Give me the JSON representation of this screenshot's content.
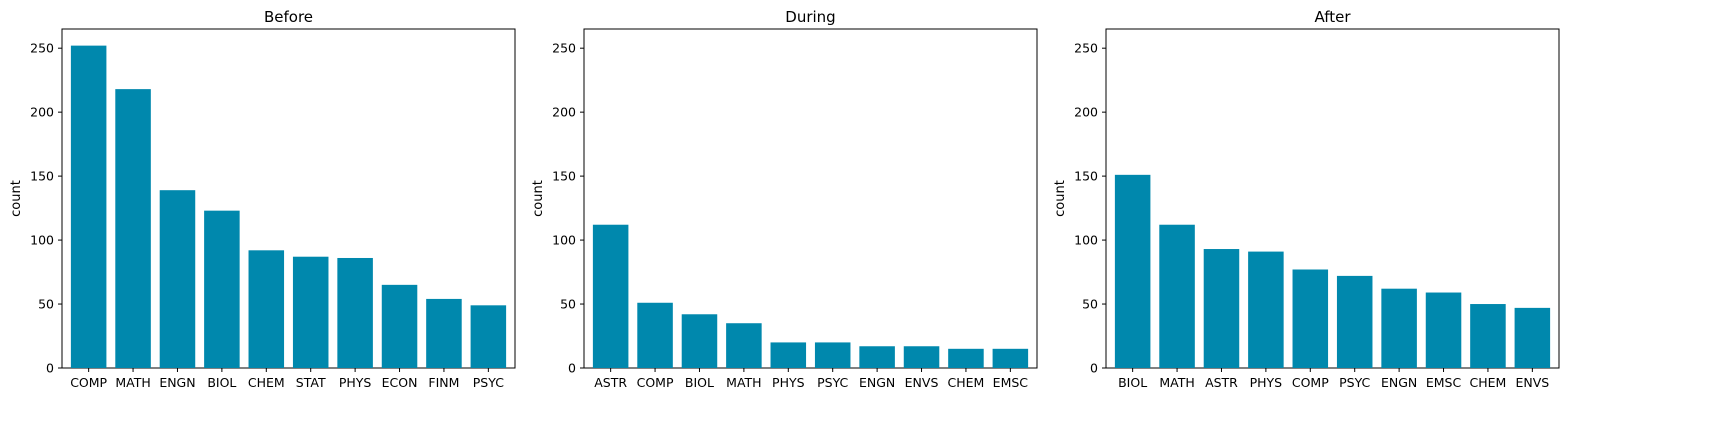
{
  "chart_data": [
    {
      "type": "bar",
      "title": "Before",
      "xlabel": "",
      "ylabel": "count",
      "ylim": [
        0,
        265
      ],
      "yticks": [
        0,
        50,
        100,
        150,
        200,
        250
      ],
      "categories": [
        "COMP",
        "MATH",
        "ENGN",
        "BIOL",
        "CHEM",
        "STAT",
        "PHYS",
        "ECON",
        "FINM",
        "PSYC"
      ],
      "values": [
        252,
        218,
        139,
        123,
        92,
        87,
        86,
        65,
        54,
        49
      ],
      "color": "#0088ad",
      "grid": false
    },
    {
      "type": "bar",
      "title": "During",
      "xlabel": "",
      "ylabel": "count",
      "ylim": [
        0,
        265
      ],
      "yticks": [
        0,
        50,
        100,
        150,
        200,
        250
      ],
      "categories": [
        "ASTR",
        "COMP",
        "BIOL",
        "MATH",
        "PHYS",
        "PSYC",
        "ENGN",
        "ENVS",
        "CHEM",
        "EMSC"
      ],
      "values": [
        112,
        51,
        42,
        35,
        20,
        20,
        17,
        17,
        15,
        15
      ],
      "color": "#0088ad",
      "grid": false
    },
    {
      "type": "bar",
      "title": "After",
      "xlabel": "",
      "ylabel": "count",
      "ylim": [
        0,
        265
      ],
      "yticks": [
        0,
        50,
        100,
        150,
        200,
        250
      ],
      "categories": [
        "BIOL",
        "MATH",
        "ASTR",
        "PHYS",
        "COMP",
        "PSYC",
        "ENGN",
        "EMSC",
        "CHEM",
        "ENVS"
      ],
      "values": [
        151,
        112,
        93,
        91,
        77,
        72,
        62,
        59,
        50,
        47
      ],
      "color": "#0088ad",
      "grid": false
    }
  ]
}
